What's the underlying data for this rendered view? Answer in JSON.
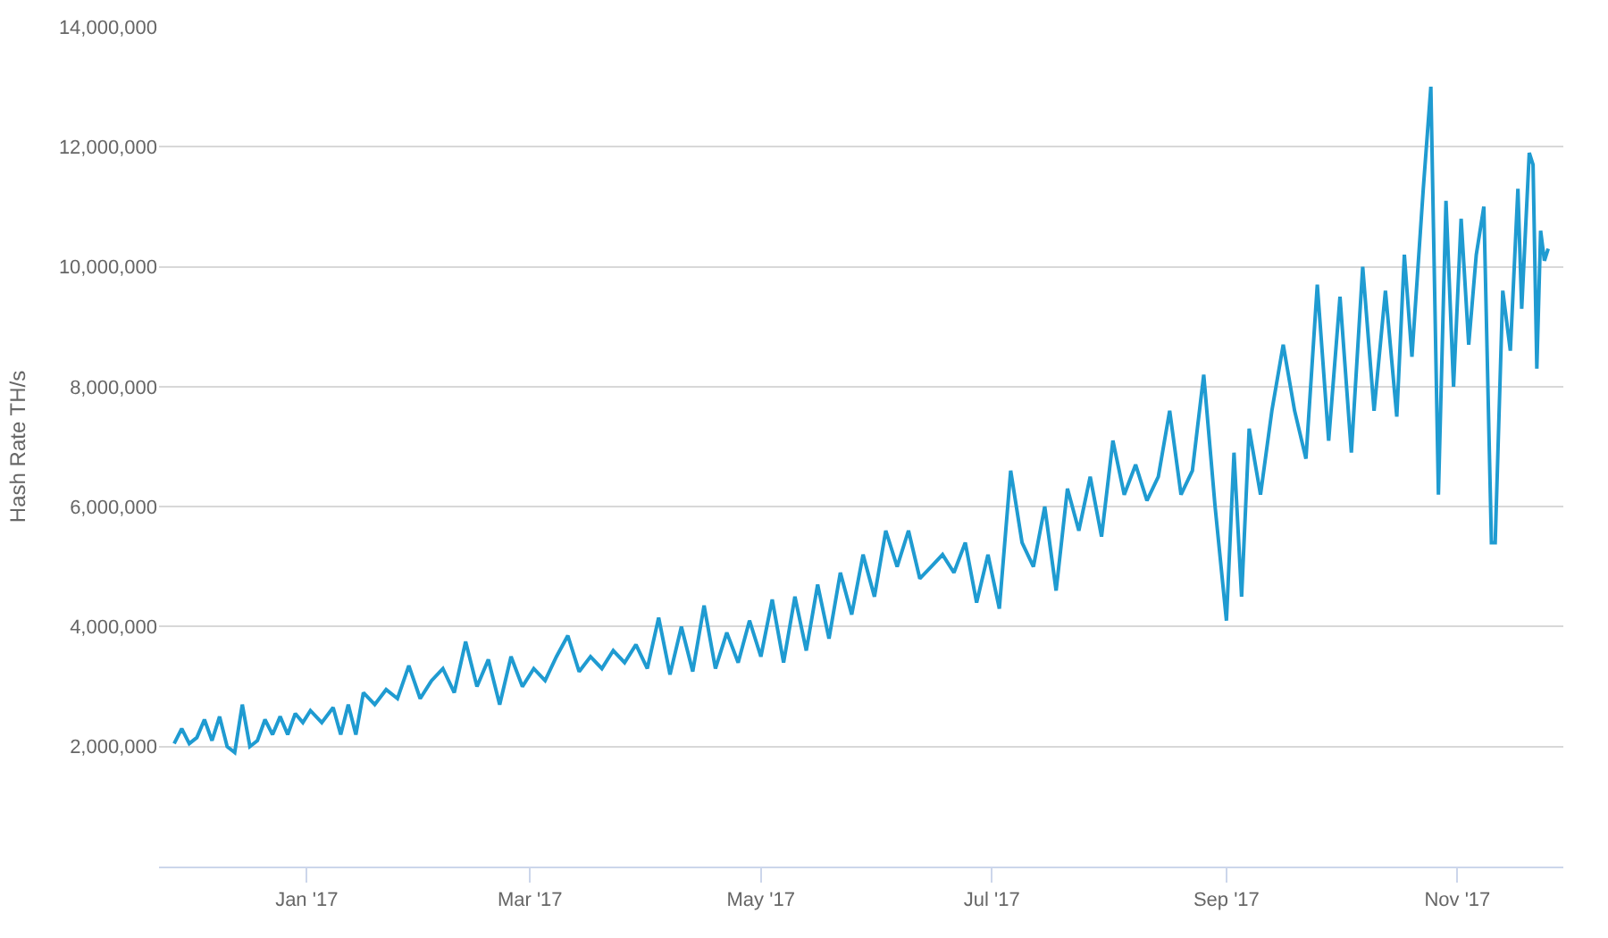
{
  "chart_data": {
    "type": "line",
    "ylabel": "Hash Rate TH/s",
    "grid": "y",
    "marker": "none",
    "line_style": "solid",
    "xlim": [
      "2016-11-23",
      "2017-11-29"
    ],
    "ylim": [
      0,
      14000000
    ],
    "xticks": [
      {
        "value": "2017-01-01",
        "label": "Jan '17"
      },
      {
        "value": "2017-03-01",
        "label": "Mar '17"
      },
      {
        "value": "2017-05-01",
        "label": "May '17"
      },
      {
        "value": "2017-07-01",
        "label": "Jul '17"
      },
      {
        "value": "2017-09-01",
        "label": "Sep '17"
      },
      {
        "value": "2017-11-01",
        "label": "Nov '17"
      }
    ],
    "yticks": [
      {
        "value": 2000000,
        "label": "2,000,000"
      },
      {
        "value": 4000000,
        "label": "4,000,000"
      },
      {
        "value": 6000000,
        "label": "6,000,000"
      },
      {
        "value": 8000000,
        "label": "8,000,000"
      },
      {
        "value": 10000000,
        "label": "10,000,000"
      },
      {
        "value": 12000000,
        "label": "12,000,000"
      },
      {
        "value": 14000000,
        "label": "14,000,000"
      }
    ],
    "x": [
      "2016-11-27",
      "2016-11-29",
      "2016-12-01",
      "2016-12-03",
      "2016-12-05",
      "2016-12-07",
      "2016-12-09",
      "2016-12-11",
      "2016-12-13",
      "2016-12-15",
      "2016-12-17",
      "2016-12-19",
      "2016-12-21",
      "2016-12-23",
      "2016-12-25",
      "2016-12-27",
      "2016-12-29",
      "2016-12-31",
      "2017-01-02",
      "2017-01-05",
      "2017-01-08",
      "2017-01-10",
      "2017-01-12",
      "2017-01-14",
      "2017-01-16",
      "2017-01-19",
      "2017-01-22",
      "2017-01-25",
      "2017-01-28",
      "2017-01-31",
      "2017-02-03",
      "2017-02-06",
      "2017-02-09",
      "2017-02-12",
      "2017-02-15",
      "2017-02-18",
      "2017-02-21",
      "2017-02-24",
      "2017-02-27",
      "2017-03-02",
      "2017-03-05",
      "2017-03-08",
      "2017-03-11",
      "2017-03-14",
      "2017-03-17",
      "2017-03-20",
      "2017-03-23",
      "2017-03-26",
      "2017-03-29",
      "2017-04-01",
      "2017-04-04",
      "2017-04-07",
      "2017-04-10",
      "2017-04-13",
      "2017-04-16",
      "2017-04-19",
      "2017-04-22",
      "2017-04-25",
      "2017-04-28",
      "2017-05-01",
      "2017-05-04",
      "2017-05-07",
      "2017-05-10",
      "2017-05-13",
      "2017-05-16",
      "2017-05-19",
      "2017-05-22",
      "2017-05-25",
      "2017-05-28",
      "2017-05-31",
      "2017-06-03",
      "2017-06-06",
      "2017-06-09",
      "2017-06-12",
      "2017-06-15",
      "2017-06-18",
      "2017-06-21",
      "2017-06-24",
      "2017-06-27",
      "2017-06-30",
      "2017-07-03",
      "2017-07-06",
      "2017-07-09",
      "2017-07-12",
      "2017-07-15",
      "2017-07-18",
      "2017-07-21",
      "2017-07-24",
      "2017-07-27",
      "2017-07-30",
      "2017-08-02",
      "2017-08-05",
      "2017-08-08",
      "2017-08-11",
      "2017-08-14",
      "2017-08-17",
      "2017-08-20",
      "2017-08-23",
      "2017-08-26",
      "2017-08-29",
      "2017-09-01",
      "2017-09-03",
      "2017-09-05",
      "2017-09-07",
      "2017-09-10",
      "2017-09-13",
      "2017-09-16",
      "2017-09-19",
      "2017-09-22",
      "2017-09-25",
      "2017-09-28",
      "2017-10-01",
      "2017-10-04",
      "2017-10-07",
      "2017-10-10",
      "2017-10-13",
      "2017-10-16",
      "2017-10-18",
      "2017-10-20",
      "2017-10-23",
      "2017-10-25",
      "2017-10-27",
      "2017-10-29",
      "2017-10-31",
      "2017-11-02",
      "2017-11-04",
      "2017-11-06",
      "2017-11-08",
      "2017-11-10",
      "2017-11-11",
      "2017-11-13",
      "2017-11-15",
      "2017-11-17",
      "2017-11-18",
      "2017-11-20",
      "2017-11-21",
      "2017-11-22",
      "2017-11-23",
      "2017-11-24",
      "2017-11-25"
    ],
    "series": [
      {
        "color": "#1f9bd1",
        "values": [
          2050000,
          2300000,
          2050000,
          2150000,
          2450000,
          2100000,
          2500000,
          2000000,
          1900000,
          2700000,
          2000000,
          2100000,
          2450000,
          2200000,
          2500000,
          2200000,
          2550000,
          2400000,
          2600000,
          2400000,
          2650000,
          2200000,
          2700000,
          2200000,
          2900000,
          2700000,
          2950000,
          2800000,
          3350000,
          2800000,
          3100000,
          3300000,
          2900000,
          3750000,
          3000000,
          3450000,
          2700000,
          3500000,
          3000000,
          3300000,
          3100000,
          3500000,
          3850000,
          3250000,
          3500000,
          3300000,
          3600000,
          3400000,
          3700000,
          3300000,
          4150000,
          3200000,
          4000000,
          3250000,
          4350000,
          3300000,
          3900000,
          3400000,
          4100000,
          3500000,
          4450000,
          3400000,
          4500000,
          3600000,
          4700000,
          3800000,
          4900000,
          4200000,
          5200000,
          4500000,
          5600000,
          5000000,
          5600000,
          4800000,
          5000000,
          5200000,
          4900000,
          5400000,
          4400000,
          5200000,
          4300000,
          6600000,
          5400000,
          5000000,
          6000000,
          4600000,
          6300000,
          5600000,
          6500000,
          5500000,
          7100000,
          6200000,
          6700000,
          6100000,
          6500000,
          7600000,
          6200000,
          6600000,
          8200000,
          6000000,
          4100000,
          6900000,
          4500000,
          7300000,
          6200000,
          7600000,
          8700000,
          7600000,
          6800000,
          9700000,
          7100000,
          9500000,
          6900000,
          10000000,
          7600000,
          9600000,
          7500000,
          10200000,
          8500000,
          11300000,
          13000000,
          6200000,
          11100000,
          8000000,
          10800000,
          8700000,
          10200000,
          11000000,
          5400000,
          5400000,
          9600000,
          8600000,
          11300000,
          9300000,
          11900000,
          11700000,
          8300000,
          10600000,
          10100000,
          10300000
        ]
      }
    ]
  }
}
